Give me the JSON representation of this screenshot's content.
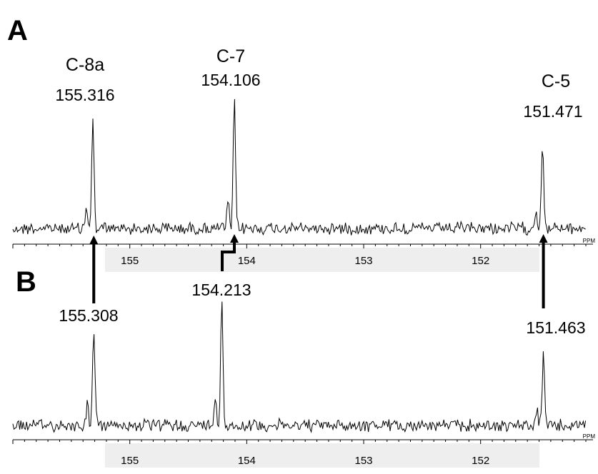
{
  "chart_data": [
    {
      "type": "line",
      "panel": "A",
      "axis_unit": "PPM",
      "x_reversed": true,
      "xlim": [
        156.0,
        151.1
      ],
      "x_ticks": [
        155,
        154,
        153,
        152
      ],
      "peaks": [
        {
          "assignment": "C-8a",
          "ppm": 155.316,
          "value_label": "155.316",
          "height": 0.72
        },
        {
          "assignment": "C-7",
          "ppm": 154.106,
          "value_label": "154.106",
          "height": 0.85
        },
        {
          "assignment": "C-5",
          "ppm": 151.471,
          "value_label": "151.471",
          "height": 0.58
        }
      ]
    },
    {
      "type": "line",
      "panel": "B",
      "axis_unit": "PPM",
      "x_reversed": true,
      "xlim": [
        156.0,
        151.1
      ],
      "x_ticks": [
        155,
        154,
        153,
        152
      ],
      "peaks": [
        {
          "ppm": 155.308,
          "value_label": "155.308",
          "height": 0.66
        },
        {
          "ppm": 154.213,
          "value_label": "154.213",
          "height": 0.85
        },
        {
          "ppm": 151.463,
          "value_label": "151.463",
          "height": 0.48
        }
      ]
    }
  ]
}
